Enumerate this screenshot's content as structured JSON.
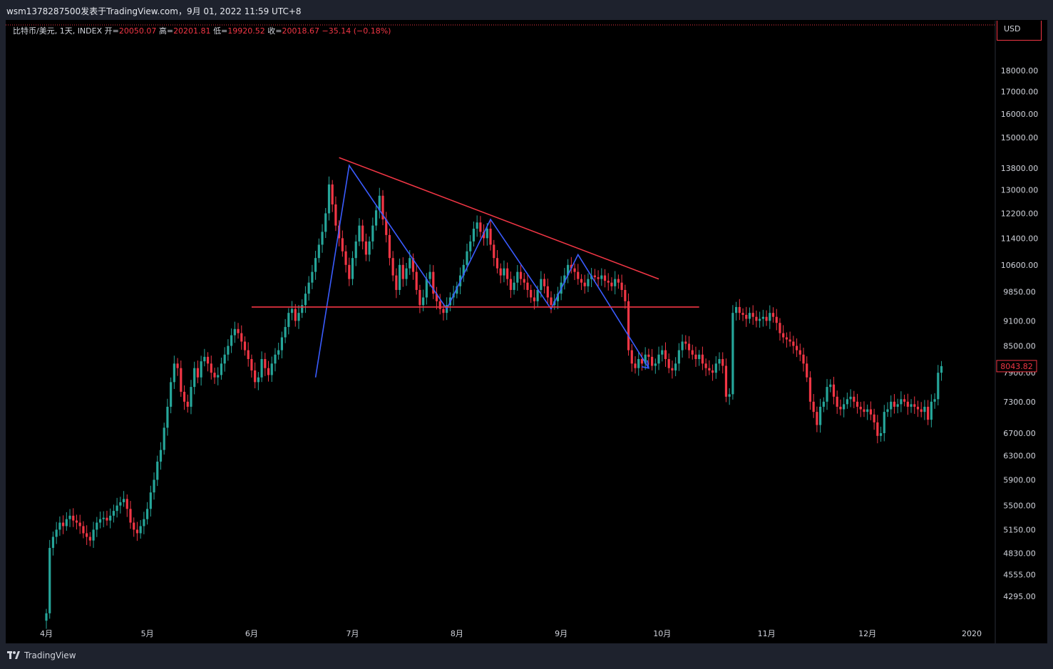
{
  "header": {
    "published_by": "wsm1378287500发表于TradingView.com，9月 01, 2022 11:59 UTC+8"
  },
  "legend": {
    "symbol": "比特币/美元, 1天, INDEX",
    "open_label": "开=",
    "open": "20050.07",
    "high_label": "高=",
    "high": "20201.81",
    "low_label": "低=",
    "low": "19920.52",
    "close_label": "收=",
    "close": "20018.67",
    "change": "−35.14 (−0.18%)"
  },
  "currency": "USD",
  "footer": {
    "brand": "TradingView"
  },
  "colors": {
    "up": "#26a69a",
    "down": "#f23645",
    "pattern": "#3a5cff",
    "trend": "#f23645",
    "background": "#000000"
  },
  "chart_data": {
    "type": "candlestick",
    "y_scale": "log",
    "ylim": [
      3950,
      19500
    ],
    "y_ticks": [
      {
        "label": "18000.00",
        "value": 18000
      },
      {
        "label": "17000.00",
        "value": 17000
      },
      {
        "label": "16000.00",
        "value": 16000
      },
      {
        "label": "15000.00",
        "value": 15000
      },
      {
        "label": "13800.00",
        "value": 13800
      },
      {
        "label": "13000.00",
        "value": 13000
      },
      {
        "label": "12200.00",
        "value": 12200
      },
      {
        "label": "11400.00",
        "value": 11400
      },
      {
        "label": "10600.00",
        "value": 10600
      },
      {
        "label": "9850.00",
        "value": 9850
      },
      {
        "label": "9100.00",
        "value": 9100
      },
      {
        "label": "8500.00",
        "value": 8500
      },
      {
        "label": "7900.00",
        "value": 7900
      },
      {
        "label": "7300.00",
        "value": 7300
      },
      {
        "label": "6700.00",
        "value": 6700
      },
      {
        "label": "6300.00",
        "value": 6300
      },
      {
        "label": "5900.00",
        "value": 5900
      },
      {
        "label": "5500.00",
        "value": 5500
      },
      {
        "label": "5150.00",
        "value": 5150
      },
      {
        "label": "4830.00",
        "value": 4830
      },
      {
        "label": "4555.00",
        "value": 4555
      },
      {
        "label": "4295.00",
        "value": 4295
      }
    ],
    "x_ticks": [
      {
        "label": "4月",
        "day": 0
      },
      {
        "label": "5月",
        "day": 30
      },
      {
        "label": "6月",
        "day": 61
      },
      {
        "label": "7月",
        "day": 91
      },
      {
        "label": "8月",
        "day": 122
      },
      {
        "label": "9月",
        "day": 153
      },
      {
        "label": "10月",
        "day": 183
      },
      {
        "label": "11月",
        "day": 214
      },
      {
        "label": "12月",
        "day": 244
      },
      {
        "label": "2020",
        "day": 275
      }
    ],
    "x_range_days": [
      -1,
      280
    ],
    "last_price": {
      "label": "8043.82",
      "value": 8043.82
    },
    "closes": [
      4100,
      4900,
      5050,
      5150,
      5250,
      5200,
      5300,
      5350,
      5280,
      5250,
      5200,
      5100,
      5050,
      5000,
      5150,
      5250,
      5300,
      5320,
      5280,
      5350,
      5420,
      5500,
      5550,
      5600,
      5450,
      5250,
      5150,
      5100,
      5200,
      5300,
      5450,
      5700,
      5900,
      6200,
      6400,
      6800,
      7200,
      7700,
      8100,
      8000,
      7500,
      7300,
      7200,
      7600,
      8000,
      7800,
      8150,
      8250,
      8100,
      7900,
      7800,
      7850,
      8100,
      8300,
      8500,
      8750,
      8900,
      8800,
      8600,
      8400,
      8200,
      7950,
      7700,
      7800,
      8200,
      8000,
      7850,
      8100,
      8300,
      8400,
      8700,
      8950,
      9300,
      9400,
      9100,
      9300,
      9500,
      9800,
      10100,
      10400,
      10800,
      11200,
      11600,
      12200,
      13200,
      12500,
      11800,
      11400,
      11000,
      10600,
      10200,
      10800,
      11300,
      11800,
      11300,
      10900,
      11300,
      11800,
      12300,
      12800,
      12000,
      11500,
      10800,
      10300,
      9900,
      10600,
      10200,
      10500,
      10800,
      10400,
      9900,
      9500,
      9700,
      10200,
      10400,
      9800,
      9600,
      9400,
      9300,
      9500,
      9700,
      9800,
      10000,
      10300,
      10600,
      11000,
      11300,
      11700,
      11900,
      11600,
      11400,
      11700,
      11200,
      10800,
      10500,
      10300,
      10500,
      10200,
      9900,
      10100,
      10400,
      10200,
      10100,
      9900,
      9700,
      9600,
      9900,
      10200,
      10000,
      9700,
      9500,
      9600,
      9800,
      10100,
      10300,
      10600,
      10500,
      10400,
      10200,
      10100,
      10000,
      10200,
      10300,
      10250,
      10200,
      10300,
      10150,
      10100,
      10000,
      10200,
      10100,
      9900,
      9600,
      8400,
      8100,
      8000,
      8200,
      8100,
      8300,
      8250,
      8050,
      8100,
      8300,
      8400,
      8200,
      8000,
      7950,
      8100,
      8400,
      8600,
      8550,
      8400,
      8300,
      8200,
      8300,
      8100,
      8000,
      7950,
      7900,
      8100,
      8200,
      8050,
      7400,
      7450,
      9300,
      9450,
      9300,
      9250,
      9150,
      9300,
      9200,
      9100,
      9150,
      9200,
      9100,
      9300,
      9200,
      9050,
      8800,
      8700,
      8650,
      8600,
      8500,
      8400,
      8300,
      8100,
      7800,
      7300,
      7100,
      6850,
      7200,
      7300,
      7600,
      7650,
      7400,
      7200,
      7150,
      7250,
      7350,
      7400,
      7300,
      7200,
      7150,
      7100,
      7150,
      7050,
      6900,
      6650,
      6700,
      7100,
      7150,
      7300,
      7200,
      7250,
      7350,
      7300,
      7200,
      7250,
      7200,
      7150,
      7100,
      7200,
      6950,
      7300,
      7350,
      7900,
      8043.82
    ],
    "pattern_zigzag": [
      [
        80,
        7800
      ],
      [
        90,
        13900
      ],
      [
        119,
        9400
      ],
      [
        132,
        12000
      ],
      [
        150,
        9400
      ],
      [
        158,
        10900
      ],
      [
        179,
        8000
      ]
    ],
    "resistance_line": [
      [
        87,
        14200
      ],
      [
        182,
        10200
      ]
    ],
    "support_line": [
      [
        61,
        9450
      ],
      [
        194,
        9450
      ]
    ]
  }
}
